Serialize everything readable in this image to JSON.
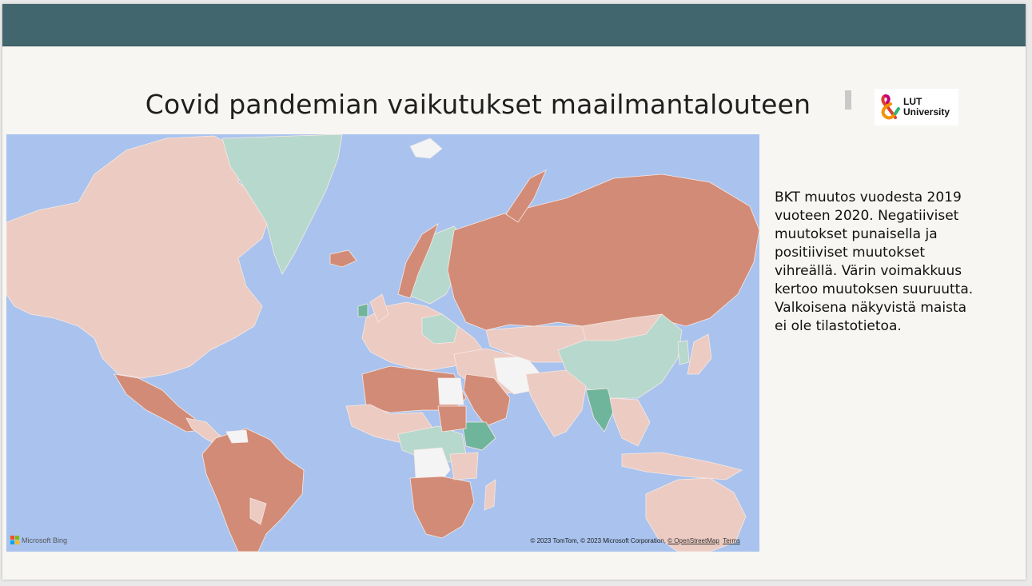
{
  "slide": {
    "title": "Covid pandemian vaikutukset maailmantalouteen",
    "description": "BKT muutos vuodesta 2019\nvuoteen 2020. Negatiiviset\nmuutokset punaisella ja\npositiiviset muutokset\nvihreällä. Värin voimakkuus\nkertoo muutoksen suuruutta.\nValkoisena näkyvistä maista\nei ole tilastotietoa."
  },
  "logo": {
    "line1": "LUT",
    "line2": "University"
  },
  "map": {
    "provider": "Microsoft Bing",
    "attribution_prefix": "© 2023 TomTom, © 2023 Microsoft Corporation, ",
    "osm_link": "© OpenStreetMap",
    "terms_link": "Terms",
    "colors": {
      "ocean": "#a9c3ee",
      "strong_negative": "#d28b76",
      "weak_negative": "#eccbc2",
      "weak_positive": "#b7d8cd",
      "strong_positive": "#6fb59c",
      "no_data": "#f4f4f4"
    }
  },
  "colors": {
    "header_bar": "#41666e",
    "slide_bg": "#f7f6f2"
  }
}
